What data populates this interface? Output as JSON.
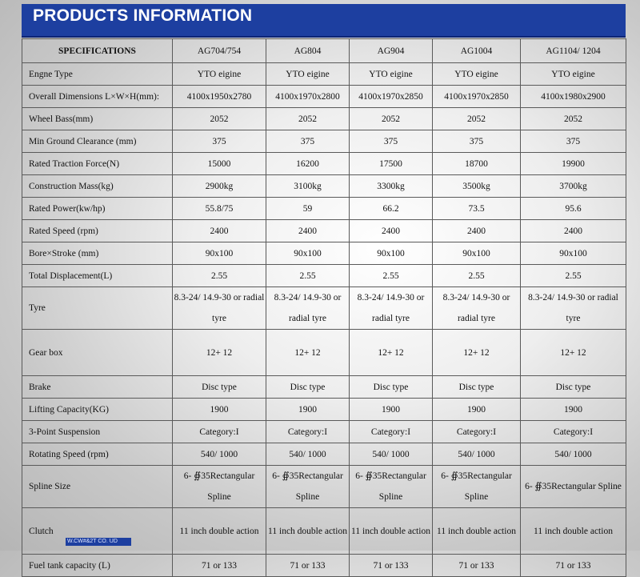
{
  "header": {
    "title": "PRODUCTS INFORMATION"
  },
  "table": {
    "columns": [
      "SPECIFICATIONS",
      "AG704/754",
      "AG804",
      "AG904",
      "AG1004",
      "AG1104/ 1204"
    ],
    "rows": [
      {
        "label": "Engne Type",
        "values": [
          "YTO eigine",
          "YTO eigine",
          "YTO eigine",
          "YTO eigine",
          "YTO eigine"
        ]
      },
      {
        "label": "Overall Dimensions  L×W×H(mm):",
        "values": [
          "4100x1950x2780",
          "4100x1970x2800",
          "4100x1970x2850",
          "4100x1970x2850",
          "4100x1980x2900"
        ]
      },
      {
        "label": "Wheel Bass(mm)",
        "values": [
          "2052",
          "2052",
          "2052",
          "2052",
          "2052"
        ]
      },
      {
        "label": "Min Ground Clearance (mm)",
        "values": [
          "375",
          "375",
          "375",
          "375",
          "375"
        ]
      },
      {
        "label": "Rated Traction Force(N)",
        "values": [
          "15000",
          "16200",
          "17500",
          "18700",
          "19900"
        ]
      },
      {
        "label": "Construction Mass(kg)",
        "values": [
          "2900kg",
          "3100kg",
          "3300kg",
          "3500kg",
          "3700kg"
        ]
      },
      {
        "label": "Rated Power(kw/hp)",
        "values": [
          "55.8/75",
          "59",
          "66.2",
          "73.5",
          "95.6"
        ]
      },
      {
        "label": "Rated Speed (rpm)",
        "values": [
          "2400",
          "2400",
          "2400",
          "2400",
          "2400"
        ]
      },
      {
        "label": "Bore×Stroke (mm)",
        "values": [
          "90x100",
          "90x100",
          "90x100",
          "90x100",
          "90x100"
        ]
      },
      {
        "label": "Total Displacement(L)",
        "values": [
          "2.55",
          "2.55",
          "2.55",
          "2.55",
          "2.55"
        ]
      },
      {
        "label": "Tyre",
        "values": [
          "8.3-24/ 14.9-30 or radial tyre",
          "8.3-24/ 14.9-30 or radial tyre",
          "8.3-24/ 14.9-30 or radial tyre",
          "8.3-24/ 14.9-30 or radial tyre",
          "8.3-24/ 14.9-30 or radial tyre"
        ]
      },
      {
        "label": "Gear box",
        "values": [
          "12+ 12",
          "12+ 12",
          "12+ 12",
          "12+ 12",
          "12+ 12"
        ]
      },
      {
        "label": "Brake",
        "values": [
          "Disc type",
          "Disc type",
          "Disc type",
          "Disc type",
          "Disc type"
        ]
      },
      {
        "label": "Lifting Capacity(KG)",
        "values": [
          "1900",
          "1900",
          "1900",
          "1900",
          "1900"
        ]
      },
      {
        "label": "3-Point Suspension",
        "values": [
          "Category:I",
          "Category:I",
          "Category:I",
          "Category:I",
          "Category:I"
        ]
      },
      {
        "label": "Rotating Speed (rpm)",
        "values": [
          "540/ 1000",
          "540/ 1000",
          "540/ 1000",
          "540/ 1000",
          "540/ 1000"
        ]
      },
      {
        "label": "Spline Size",
        "values": [
          "6- ∯35Rectangular Spline",
          "6- ∯35Rectangular Spline",
          "6- ∯35Rectangular Spline",
          "6- ∯35Rectangular Spline",
          "6- ∯35Rectangular Spline"
        ]
      },
      {
        "label": "Clutch",
        "values": [
          "11 inch double action",
          "11 inch double action",
          "11 inch double action",
          "11 inch double action",
          "11 inch double action"
        ]
      },
      {
        "label": "Fuel tank capacity (L)",
        "values": [
          "71 or 133",
          "71 or 133",
          "71 or 133",
          "71 or 133",
          "71 or 133"
        ]
      }
    ]
  },
  "footer": {
    "mark": "W.CW#&2T CO. UD"
  },
  "colors": {
    "header_bg": "#1d3fa0",
    "header_text": "#ffffff",
    "grid": "#5a5a5a"
  }
}
